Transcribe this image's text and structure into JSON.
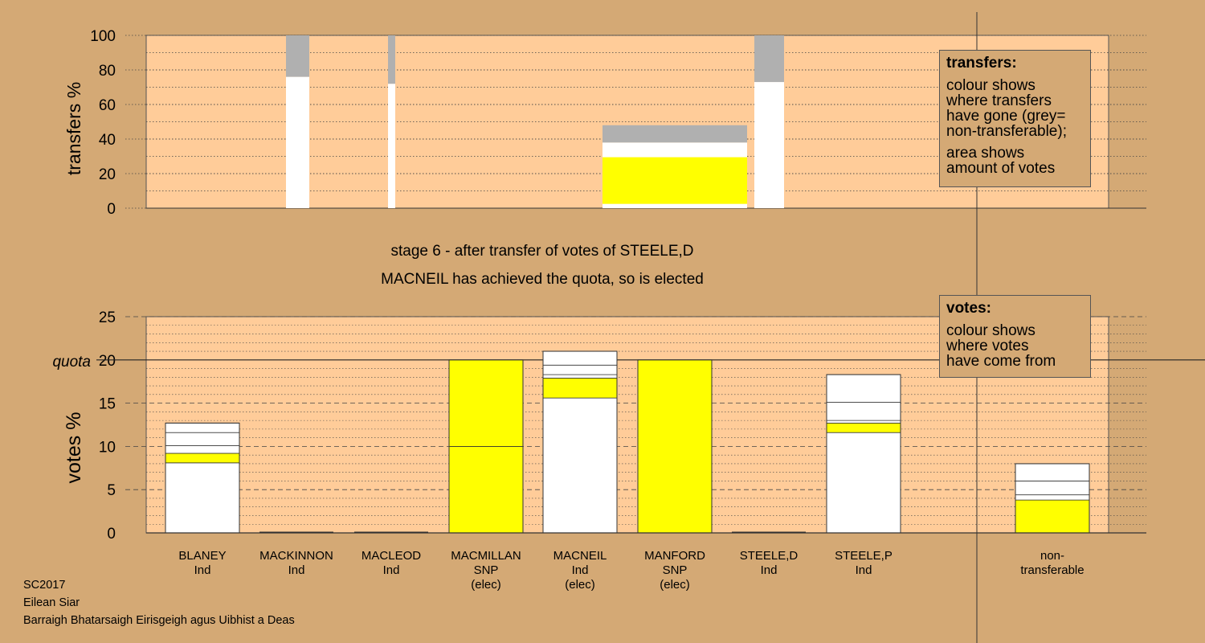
{
  "chart_data": [
    {
      "type": "bar",
      "ylabel": "transfers %",
      "ylim": [
        0,
        100
      ],
      "yticks": [
        0,
        20,
        40,
        60,
        80,
        100
      ],
      "grid": "dotted",
      "description": "Transfer of STEELE,D votes: column width shows transfer amount, colour shows destination",
      "bars": [
        {
          "target": "MACKINNON",
          "segments": [
            {
              "color": "#ffffff",
              "from": 0,
              "to": 76
            },
            {
              "color": "#b0b0b0",
              "from": 76,
              "to": 100
            }
          ]
        },
        {
          "target": "MACLEOD",
          "segments": [
            {
              "color": "#ffffff",
              "from": 0,
              "to": 72
            },
            {
              "color": "#b0b0b0",
              "from": 72,
              "to": 100
            }
          ]
        },
        {
          "target": "MACNEIL",
          "segments": [
            {
              "color": "#ffffff",
              "from": 0,
              "to": 2.5
            },
            {
              "color": "#ffff00",
              "from": 2.5,
              "to": 29.5
            },
            {
              "color": "#ffffff",
              "from": 29.5,
              "to": 38
            },
            {
              "color": "#b0b0b0",
              "from": 38,
              "to": 48
            }
          ]
        },
        {
          "target": "STEELE,P",
          "segments": [
            {
              "color": "#ffffff",
              "from": 0,
              "to": 73
            },
            {
              "color": "#b0b0b0",
              "from": 73,
              "to": 100
            }
          ]
        }
      ]
    },
    {
      "type": "bar",
      "ylabel": "votes %",
      "ylim": [
        0,
        25
      ],
      "yticks": [
        0,
        5,
        10,
        15,
        20,
        25
      ],
      "quota": 20,
      "quota_label": "quota",
      "categories": [
        "BLANEY",
        "MACKINNON",
        "MACLEOD",
        "MACMILLAN",
        "MACNEIL",
        "MANFORD",
        "STEELE,D",
        "STEELE,P",
        "non-transferable"
      ],
      "bars": [
        {
          "name": "BLANEY",
          "total": 12.7,
          "segments": [
            {
              "color": "#ffffff",
              "value": 8.1
            },
            {
              "color": "#ffff00",
              "value": 1.1
            },
            {
              "color": "#ffffff",
              "value": 0.9
            },
            {
              "color": "#ffffff",
              "value": 1.5
            },
            {
              "color": "#ffffff",
              "value": 1.1
            }
          ]
        },
        {
          "name": "MACKINNON",
          "total": 0,
          "segments": []
        },
        {
          "name": "MACLEOD",
          "total": 0,
          "segments": []
        },
        {
          "name": "MACMILLAN",
          "total": 20,
          "segments": [
            {
              "color": "#ffff00",
              "value": 10
            },
            {
              "color": "#ffff00",
              "value": 10
            }
          ]
        },
        {
          "name": "MACNEIL",
          "total": 21,
          "segments": [
            {
              "color": "#ffffff",
              "value": 15.6
            },
            {
              "color": "#ffff00",
              "value": 2.3
            },
            {
              "color": "#ffffff",
              "value": 0.4
            },
            {
              "color": "#ffffff",
              "value": 1.1
            },
            {
              "color": "#ffffff",
              "value": 1.6
            }
          ]
        },
        {
          "name": "MANFORD",
          "total": 20,
          "segments": [
            {
              "color": "#ffff00",
              "value": 20
            }
          ]
        },
        {
          "name": "STEELE,D",
          "total": 0,
          "segments": []
        },
        {
          "name": "STEELE,P",
          "total": 18.3,
          "segments": [
            {
              "color": "#ffffff",
              "value": 11.6
            },
            {
              "color": "#ffff00",
              "value": 1.1
            },
            {
              "color": "#ffffff",
              "value": 0.3
            },
            {
              "color": "#ffffff",
              "value": 2.1
            },
            {
              "color": "#ffffff",
              "value": 3.2
            }
          ]
        },
        {
          "name": "non-transferable",
          "total": 8.0,
          "segments": [
            {
              "color": "#ffff00",
              "value": 3.8
            },
            {
              "color": "#ffffff",
              "value": 0.6
            },
            {
              "color": "#ffffff",
              "value": 1.6
            },
            {
              "color": "#ffffff",
              "value": 2.0
            }
          ]
        }
      ]
    }
  ],
  "candidates": [
    {
      "name": "BLANEY",
      "party": "Ind",
      "status": ""
    },
    {
      "name": "MACKINNON",
      "party": "Ind",
      "status": ""
    },
    {
      "name": "MACLEOD",
      "party": "Ind",
      "status": ""
    },
    {
      "name": "MACMILLAN",
      "party": "SNP",
      "status": "(elec)"
    },
    {
      "name": "MACNEIL",
      "party": "Ind",
      "status": "(elec)"
    },
    {
      "name": "MANFORD",
      "party": "SNP",
      "status": "(elec)"
    },
    {
      "name": "STEELE,D",
      "party": "Ind",
      "status": ""
    },
    {
      "name": "STEELE,P",
      "party": "Ind",
      "status": ""
    },
    {
      "name": "non-",
      "party": "transferable",
      "status": ""
    }
  ],
  "stage_text": "stage 6 - after transfer of votes of STEELE,D",
  "elected_text": "MACNEIL has achieved the quota, so is elected",
  "transfers_legend": {
    "title": "transfers:",
    "lines": [
      "colour shows",
      "where transfers",
      "have gone (grey=",
      "non-transferable);"
    ],
    "lines2": [
      "area shows",
      "amount of votes"
    ]
  },
  "votes_legend": {
    "title": "votes:",
    "lines": [
      "colour shows",
      "where votes",
      "have come from"
    ]
  },
  "footer": {
    "line1": "SC2017",
    "line2": "Eilean Siar",
    "line3": "Barraigh Bhatarsaigh Eirisgeigh agus Uibhist a Deas"
  },
  "colors": {
    "background": "#d4a975",
    "plot_area": "#ffcc99",
    "snp": "#ffff00",
    "independent": "#ffffff",
    "non_transferable": "#b0b0b0"
  }
}
